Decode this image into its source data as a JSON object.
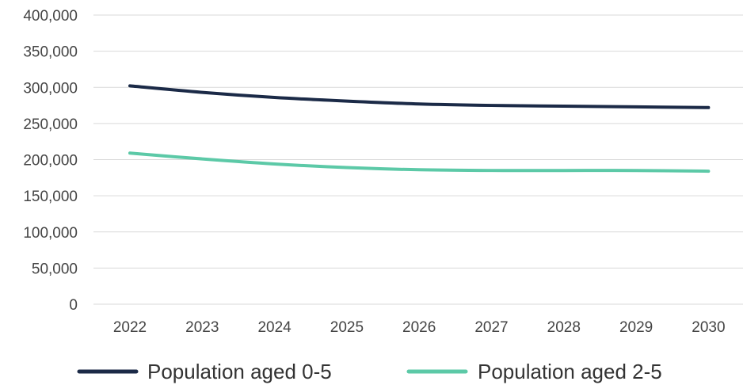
{
  "chart_data": {
    "type": "line",
    "x": [
      "2022",
      "2023",
      "2024",
      "2025",
      "2026",
      "2027",
      "2028",
      "2029",
      "2030"
    ],
    "series": [
      {
        "name": "Population aged 0-5",
        "values": [
          302000,
          293000,
          286000,
          281000,
          277000,
          275000,
          274000,
          273000,
          272000
        ],
        "color": "#1b2a47"
      },
      {
        "name": "Population aged 2-5",
        "values": [
          209000,
          201000,
          194000,
          189000,
          186000,
          185000,
          185000,
          185000,
          184000
        ],
        "color": "#5cc9a7"
      }
    ],
    "ylim": [
      0,
      400000
    ],
    "yticks": [
      "0",
      "50,000",
      "100,000",
      "150,000",
      "200,000",
      "250,000",
      "300,000",
      "350,000",
      "400,000"
    ],
    "grid": true,
    "legend_position": "bottom"
  }
}
